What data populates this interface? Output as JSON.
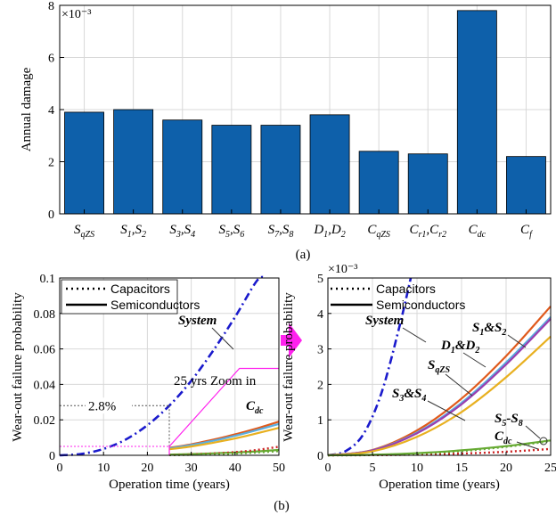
{
  "chart_data": [
    {
      "type": "bar",
      "panel_label": "(a)",
      "ylabel": "Annual damage",
      "exponent_label": "×10⁻³",
      "ylim": [
        0,
        8
      ],
      "yticks": [
        0,
        2,
        4,
        6,
        8
      ],
      "grid": true,
      "bar_color": "#0e60aa",
      "categories": [
        {
          "main": "S",
          "sub": "qZS"
        },
        {
          "main": "S",
          "sub": "1",
          "main2": ",S",
          "sub2": "2"
        },
        {
          "main": "S",
          "sub": "3",
          "main2": ",S",
          "sub2": "4"
        },
        {
          "main": "S",
          "sub": "5",
          "main2": ",S",
          "sub2": "6"
        },
        {
          "main": "S",
          "sub": "7",
          "main2": ",S",
          "sub2": "8"
        },
        {
          "main": "D",
          "sub": "1",
          "main2": ",D",
          "sub2": "2"
        },
        {
          "main": "C",
          "sub": "qZS"
        },
        {
          "main": "C",
          "sub": "r1",
          "main2": ",C",
          "sub2": "r2"
        },
        {
          "main": "C",
          "sub": "dc"
        },
        {
          "main": "C",
          "sub": "f"
        }
      ],
      "values": [
        3.9,
        4.0,
        3.6,
        3.4,
        3.4,
        3.8,
        2.4,
        2.3,
        7.8,
        2.2
      ]
    },
    {
      "type": "line",
      "panel_label": "(b)",
      "xlabel": "Operation time (years)",
      "ylabel": "Wear-out failure probability",
      "xlim": [
        0,
        50
      ],
      "ylim": [
        0,
        0.1
      ],
      "xticks": [
        0,
        10,
        20,
        30,
        40,
        50
      ],
      "yticks": [
        0,
        0.02,
        0.04,
        0.06,
        0.08,
        0.1
      ],
      "ytick_labels": [
        "0",
        "0.02",
        "0.04",
        "0.06",
        "0.08",
        "0.1"
      ],
      "grid": true,
      "legend": {
        "placement": "top-left",
        "entries": [
          "Capacitors",
          "Semiconductors"
        ]
      },
      "annotations": {
        "system": "System",
        "years": "25 yrs",
        "percent": "2.8%",
        "zoom": "Zoom in",
        "cdc_main": "C",
        "cdc_sub": "dc"
      },
      "series": [
        {
          "key": "system",
          "color": "#1a1acc",
          "style": "dashdot",
          "x": [
            0,
            5,
            10,
            15,
            20,
            25,
            30,
            35,
            40,
            45,
            47
          ],
          "y": [
            0,
            0.0008,
            0.0036,
            0.0088,
            0.017,
            0.028,
            0.042,
            0.059,
            0.078,
            0.0985,
            0.1
          ]
        },
        {
          "key": "semi-1",
          "color": "#e05a1c",
          "style": "solid",
          "x": [
            25,
            30,
            35,
            40,
            45,
            50
          ],
          "y": [
            0.0042,
            0.0062,
            0.0088,
            0.0118,
            0.0152,
            0.019
          ]
        },
        {
          "key": "semi-2",
          "color": "#5aaee0",
          "style": "solid",
          "x": [
            25,
            30,
            35,
            40,
            45,
            50
          ],
          "y": [
            0.0039,
            0.0058,
            0.0082,
            0.011,
            0.0142,
            0.0177
          ]
        },
        {
          "key": "semi-3",
          "color": "#e8b020",
          "style": "solid",
          "x": [
            25,
            30,
            35,
            40,
            45,
            50
          ],
          "y": [
            0.0034,
            0.005,
            0.0071,
            0.0095,
            0.0124,
            0.0155
          ]
        },
        {
          "key": "semi-4",
          "color": "#66aa33",
          "style": "solid",
          "x": [
            25,
            30,
            35,
            40,
            45,
            50
          ],
          "y": [
            0.0004,
            0.0007,
            0.0011,
            0.0016,
            0.0022,
            0.003
          ]
        },
        {
          "key": "cap-1",
          "color": "#cc2222",
          "style": "dotted",
          "x": [
            25,
            30,
            35,
            40,
            45,
            50
          ],
          "y": [
            0.0002,
            0.0005,
            0.001,
            0.0018,
            0.003,
            0.0048
          ]
        },
        {
          "key": "cap-2",
          "color": "#66aa33",
          "style": "dotted",
          "x": [
            25,
            30,
            35,
            40,
            45,
            50
          ],
          "y": [
            0.0001,
            0.0003,
            0.0006,
            0.001,
            0.0016,
            0.0024
          ]
        }
      ]
    },
    {
      "type": "line",
      "xlabel": "Operation time (years)",
      "ylabel": "Wear-out failure probability",
      "exponent_label": "×10⁻³",
      "xlim": [
        0,
        25
      ],
      "ylim": [
        0,
        5
      ],
      "xticks": [
        0,
        5,
        10,
        15,
        20,
        25
      ],
      "yticks": [
        0,
        1,
        2,
        3,
        4,
        5
      ],
      "grid": true,
      "legend": {
        "placement": "top-left",
        "entries": [
          "Capacitors",
          "Semiconductors"
        ]
      },
      "annotations": {
        "system": "System",
        "s1s2": {
          "a": "S",
          "as": "1",
          "b": "&S",
          "bs": "2"
        },
        "d1d2": {
          "a": "D",
          "as": "1",
          "b": "&D",
          "bs": "2"
        },
        "sqzs": {
          "a": "S",
          "as": "qZS"
        },
        "s3s4": {
          "a": "S",
          "as": "3",
          "b": "&S",
          "bs": "4"
        },
        "s5s8": {
          "a": "S",
          "as": "5",
          "b": "-S",
          "bs": "8"
        },
        "cdc": {
          "a": "C",
          "as": "dc"
        }
      },
      "series": [
        {
          "key": "system",
          "color": "#1a1acc",
          "style": "dashdot",
          "x": [
            0,
            2,
            4,
            6,
            8,
            9.3
          ],
          "y": [
            0,
            0.12,
            0.6,
            1.75,
            3.6,
            5.0
          ]
        },
        {
          "key": "s1s2",
          "color": "#e05a1c",
          "style": "solid",
          "x": [
            0,
            5,
            10,
            15,
            20,
            25
          ],
          "y": [
            0,
            0.15,
            0.7,
            1.6,
            2.8,
            4.2
          ]
        },
        {
          "key": "d1d2",
          "color": "#5aaee0",
          "style": "solid",
          "x": [
            0,
            5,
            10,
            15,
            20,
            25
          ],
          "y": [
            0,
            0.14,
            0.64,
            1.48,
            2.62,
            3.9
          ]
        },
        {
          "key": "sqzs",
          "color": "#9a3fb0",
          "style": "solid",
          "x": [
            0,
            5,
            10,
            15,
            20,
            25
          ],
          "y": [
            0,
            0.135,
            0.62,
            1.44,
            2.56,
            3.85
          ]
        },
        {
          "key": "s3s4",
          "color": "#e8b020",
          "style": "solid",
          "x": [
            0,
            5,
            10,
            15,
            20,
            25
          ],
          "y": [
            0,
            0.11,
            0.52,
            1.22,
            2.2,
            3.35
          ]
        },
        {
          "key": "s5s8",
          "color": "#66aa33",
          "style": "solid",
          "x": [
            0,
            5,
            10,
            15,
            20,
            25
          ],
          "y": [
            0,
            0.015,
            0.06,
            0.14,
            0.26,
            0.42
          ]
        },
        {
          "key": "cdc",
          "color": "#cc2222",
          "style": "dotted",
          "x": [
            0,
            5,
            10,
            15,
            20,
            25
          ],
          "y": [
            0,
            0.005,
            0.02,
            0.05,
            0.1,
            0.18
          ]
        },
        {
          "key": "cap-other",
          "color": "#66aa33",
          "style": "dotted",
          "x": [
            0,
            5,
            10,
            15,
            20,
            25
          ],
          "y": [
            0,
            0.01,
            0.05,
            0.12,
            0.24,
            0.4
          ]
        }
      ]
    }
  ]
}
